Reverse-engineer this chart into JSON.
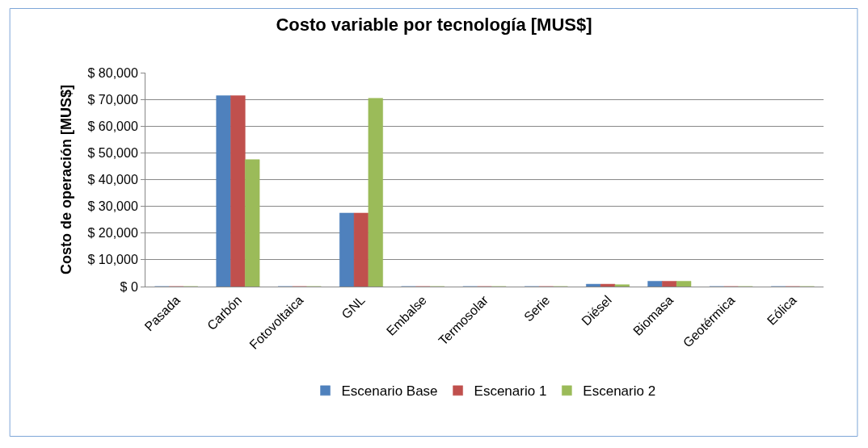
{
  "chart_data": {
    "type": "bar",
    "title": "Costo variable por tecnología [MUS$]",
    "ylabel": "Costo de operación [MUS$]",
    "categories": [
      "Pasada",
      "Carbón",
      "Fotovoltaica",
      "GNL",
      "Embalse",
      "Termosolar",
      "Serie",
      "Diésel",
      "Biomasa",
      "Geotérmica",
      "Eólica"
    ],
    "series": [
      {
        "name": "Escenario Base",
        "color": "#4f81bd",
        "values": [
          0,
          71400,
          0,
          27500,
          0,
          0,
          0,
          900,
          2000,
          0,
          0
        ]
      },
      {
        "name": "Escenario 1",
        "color": "#c0504d",
        "values": [
          0,
          71400,
          0,
          27500,
          0,
          0,
          0,
          900,
          2000,
          0,
          0
        ]
      },
      {
        "name": "Escenario 2",
        "color": "#9bbb59",
        "values": [
          0,
          47500,
          0,
          70400,
          0,
          0,
          0,
          700,
          2000,
          0,
          0
        ]
      }
    ],
    "ylim": [
      0,
      80000
    ],
    "yticks": [
      {
        "value": 0,
        "label": "$ 0"
      },
      {
        "value": 10000,
        "label": "$ 10,000"
      },
      {
        "value": 20000,
        "label": "$ 20,000"
      },
      {
        "value": 30000,
        "label": "$ 30,000"
      },
      {
        "value": 40000,
        "label": "$ 40,000"
      },
      {
        "value": 50000,
        "label": "$ 50,000"
      },
      {
        "value": 60000,
        "label": "$ 60,000"
      },
      {
        "value": 70000,
        "label": "$ 70,000"
      },
      {
        "value": 80000,
        "label": "$ 80,000"
      }
    ],
    "grid": "y",
    "legend": "bottom"
  }
}
